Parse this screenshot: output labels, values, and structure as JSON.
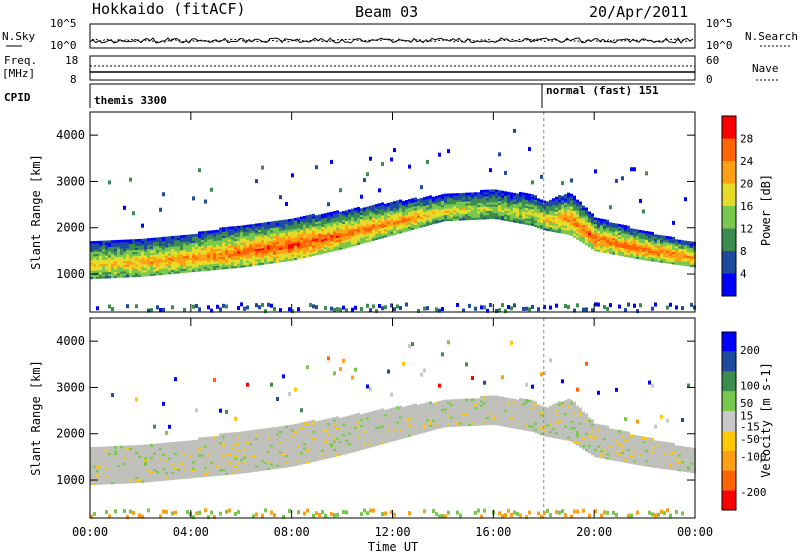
{
  "header": {
    "station": "Hokkaido (fitACF)",
    "beam": "Beam 03",
    "date": "20/Apr/2011"
  },
  "side_labels": {
    "nsky": "N.Sky",
    "freq": "Freq.",
    "freq_unit": "[MHz]",
    "cpid": "CPID",
    "nsearch": "N.Search",
    "nave": "Nave"
  },
  "strip_ticks": {
    "nsky_left": [
      "10^5",
      "10^0"
    ],
    "nsky_right": [
      "10^5",
      "10^0"
    ],
    "freq_left": [
      "18",
      "8"
    ],
    "nave_right": [
      "60",
      "0"
    ]
  },
  "cpid_segments": [
    {
      "label": "themis 3300",
      "start_h": 0.0
    },
    {
      "label": "normal (fast) 151",
      "start_h": 18.0
    }
  ],
  "colors": {
    "power": [
      "#0000ff",
      "#1e4ba0",
      "#3c8c50",
      "#78c850",
      "#e6dc28",
      "#ffa014",
      "#ff6400",
      "#ff0000"
    ],
    "velocity": [
      "#0000ff",
      "#1e4ba0",
      "#3c8c50",
      "#78c850",
      "#c8c8c8",
      "#ffc800",
      "#ffa014",
      "#ff6400",
      "#ff0000"
    ],
    "ground_scatter": "#c0c0bb"
  },
  "chart_data": [
    {
      "type": "heatmap",
      "name": "power",
      "xlabel": "Time UT",
      "ylabel": "Slant Range [km]",
      "xlim": [
        0,
        24
      ],
      "ylim": [
        180,
        4500
      ],
      "x_ticks": [
        "00:00",
        "04:00",
        "08:00",
        "12:00",
        "16:00",
        "20:00",
        "00:00"
      ],
      "y_ticks": [
        1000,
        2000,
        3000,
        4000
      ],
      "colorbar": {
        "label": "Power [dB]",
        "ticks": [
          4,
          8,
          12,
          16,
          20,
          24,
          28
        ],
        "range": [
          0,
          32
        ]
      },
      "main_band": {
        "time_h": [
          0,
          2,
          4,
          6,
          8,
          10,
          12,
          14,
          16,
          17.5,
          18,
          19,
          20,
          22,
          24
        ],
        "lower_km": [
          900,
          950,
          1050,
          1150,
          1300,
          1550,
          1850,
          2150,
          2200,
          2050,
          1950,
          1850,
          1500,
          1300,
          1150
        ],
        "upper_km": [
          1700,
          1750,
          1850,
          2050,
          2200,
          2350,
          2550,
          2700,
          2800,
          2700,
          2550,
          2750,
          2200,
          1900,
          1650
        ],
        "peak_db": [
          20,
          22,
          24,
          26,
          28,
          26,
          24,
          20,
          16,
          18,
          20,
          24,
          26,
          26,
          24
        ]
      }
    },
    {
      "type": "heatmap",
      "name": "velocity",
      "xlabel": "Time UT",
      "ylabel": "Slant Range [km]",
      "xlim": [
        0,
        24
      ],
      "ylim": [
        180,
        4500
      ],
      "x_ticks": [
        "00:00",
        "04:00",
        "08:00",
        "12:00",
        "16:00",
        "20:00",
        "00:00"
      ],
      "y_ticks": [
        1000,
        2000,
        3000,
        4000
      ],
      "colorbar": {
        "label": "Velocity [m s-1]",
        "ticks": [
          200,
          100,
          50,
          15,
          -15,
          -50,
          -100,
          -200
        ],
        "range": [
          -250,
          250
        ]
      },
      "main_band": {
        "time_h": [
          0,
          2,
          4,
          6,
          8,
          10,
          12,
          14,
          16,
          17.5,
          18,
          19,
          20,
          22,
          24
        ],
        "lower_km": [
          900,
          950,
          1050,
          1150,
          1300,
          1550,
          1850,
          2150,
          2200,
          2050,
          1950,
          1850,
          1500,
          1300,
          1150
        ],
        "upper_km": [
          1700,
          1750,
          1850,
          2050,
          2200,
          2350,
          2550,
          2700,
          2800,
          2700,
          2550,
          2750,
          2200,
          1900,
          1650
        ],
        "dominant_velocity": "ground scatter (grey)"
      }
    }
  ]
}
